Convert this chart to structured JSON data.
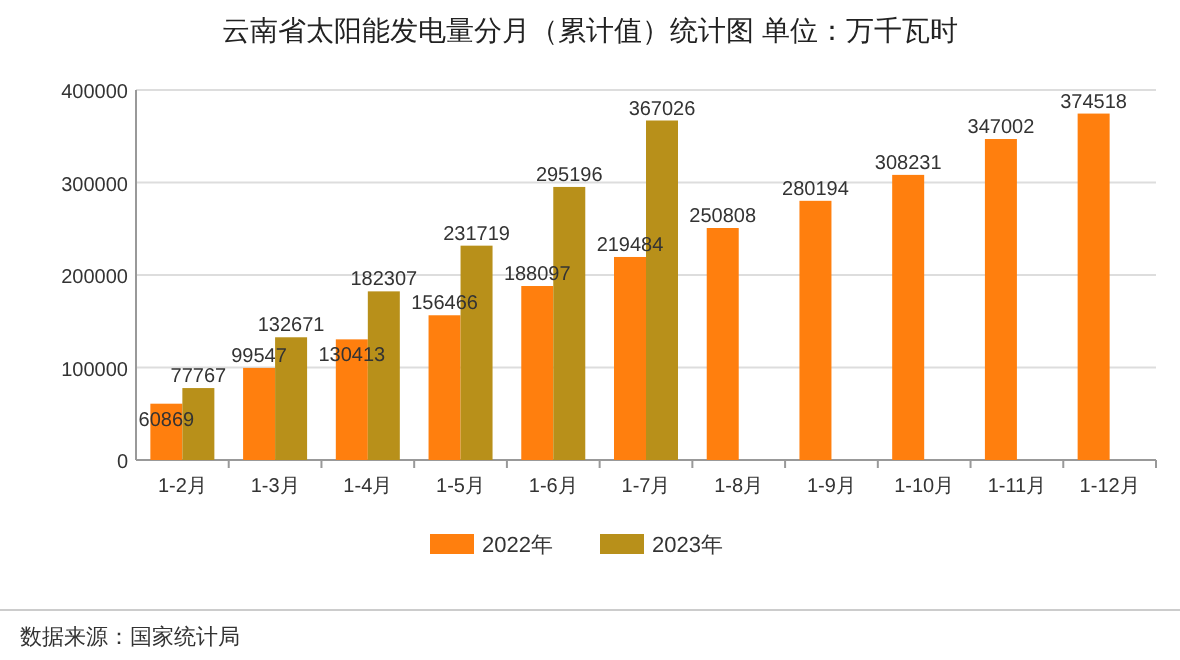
{
  "chart_data": {
    "type": "bar",
    "title": "云南省太阳能发电量分月（累计值）统计图 单位：万千瓦时",
    "categories": [
      "1-2月",
      "1-3月",
      "1-4月",
      "1-5月",
      "1-6月",
      "1-7月",
      "1-8月",
      "1-9月",
      "1-10月",
      "1-11月",
      "1-12月"
    ],
    "series": [
      {
        "name": "2022年",
        "color": "#ff7f0e",
        "values": [
          60869,
          99547,
          130413,
          156466,
          188097,
          219484,
          250808,
          280194,
          308231,
          347002,
          374518
        ]
      },
      {
        "name": "2023年",
        "color": "#b8901a",
        "values": [
          77767,
          132671,
          182307,
          231719,
          295196,
          367026,
          null,
          null,
          null,
          null,
          null
        ]
      }
    ],
    "ylim": [
      0,
      400000
    ],
    "yticks": [
      0,
      100000,
      200000,
      300000,
      400000
    ],
    "grid": "y",
    "legend": "bottom",
    "data_labels": true,
    "annotations": [
      "数据来源：国家统计局"
    ]
  }
}
